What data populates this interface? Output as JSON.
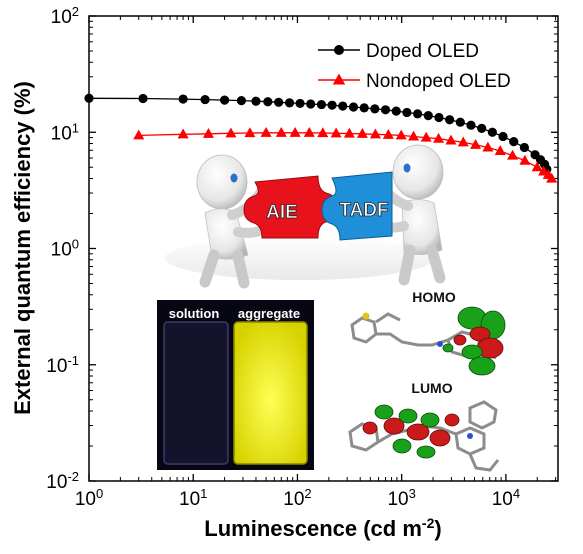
{
  "chart_data": {
    "type": "line",
    "xlabel": "Luminescence (cd m⁻²)",
    "ylabel": "External quantum efficiency (%)",
    "xscale": "log",
    "yscale": "log",
    "xlim": [
      1,
      31623
    ],
    "ylim": [
      0.01,
      100
    ],
    "x_ticks": [
      {
        "base": "10",
        "exp": "0"
      },
      {
        "base": "10",
        "exp": "1"
      },
      {
        "base": "10",
        "exp": "2"
      },
      {
        "base": "10",
        "exp": "3"
      },
      {
        "base": "10",
        "exp": "4"
      }
    ],
    "y_ticks": [
      {
        "base": "10",
        "exp": "-2"
      },
      {
        "base": "10",
        "exp": "-1"
      },
      {
        "base": "10",
        "exp": "0"
      },
      {
        "base": "10",
        "exp": "1"
      },
      {
        "base": "10",
        "exp": "2"
      }
    ],
    "legend_position": "top-right",
    "series": [
      {
        "name": "Doped OLED",
        "color": "#000000",
        "marker": "circle",
        "x": [
          1,
          3.3,
          8,
          13,
          20,
          29,
          40,
          52,
          66,
          84,
          106,
          134,
          170,
          215,
          272,
          345,
          437,
          553,
          700,
          887,
          1123,
          1422,
          1800,
          2280,
          2886,
          3654,
          4627,
          5858,
          7417,
          9390,
          11889,
          15052,
          19057,
          21500,
          23500,
          24700
        ],
        "y": [
          19.6,
          19.5,
          19.3,
          19.1,
          18.9,
          18.7,
          18.5,
          18.3,
          18.1,
          17.9,
          17.7,
          17.5,
          17.3,
          17.1,
          16.8,
          16.5,
          16.2,
          15.9,
          15.6,
          15.2,
          14.8,
          14.4,
          13.9,
          13.4,
          12.8,
          12.2,
          11.5,
          10.8,
          10.0,
          9.2,
          8.3,
          7.4,
          6.4,
          5.8,
          5.3,
          4.8
        ]
      },
      {
        "name": "Nondoped OLED",
        "color": "#ff0000",
        "marker": "triangle",
        "x": [
          3,
          8,
          14,
          23,
          35,
          50,
          70,
          95,
          130,
          175,
          235,
          315,
          420,
          560,
          745,
          990,
          1300,
          1720,
          2260,
          2970,
          3900,
          5120,
          6720,
          8820,
          11580,
          15200,
          19950,
          23000,
          25500,
          27500
        ],
        "y": [
          9.4,
          9.6,
          9.7,
          9.8,
          9.85,
          9.9,
          9.9,
          9.9,
          9.9,
          9.85,
          9.8,
          9.75,
          9.7,
          9.6,
          9.5,
          9.4,
          9.2,
          9.0,
          8.8,
          8.5,
          8.2,
          7.8,
          7.4,
          6.9,
          6.3,
          5.7,
          5.0,
          4.6,
          4.3,
          4.0
        ]
      }
    ]
  },
  "inset": {
    "puzzle_left": "AIE",
    "puzzle_right": "TADF",
    "vial_left": "solution",
    "vial_right": "aggregate",
    "homo": "HOMO",
    "lumo": "LUMO"
  }
}
